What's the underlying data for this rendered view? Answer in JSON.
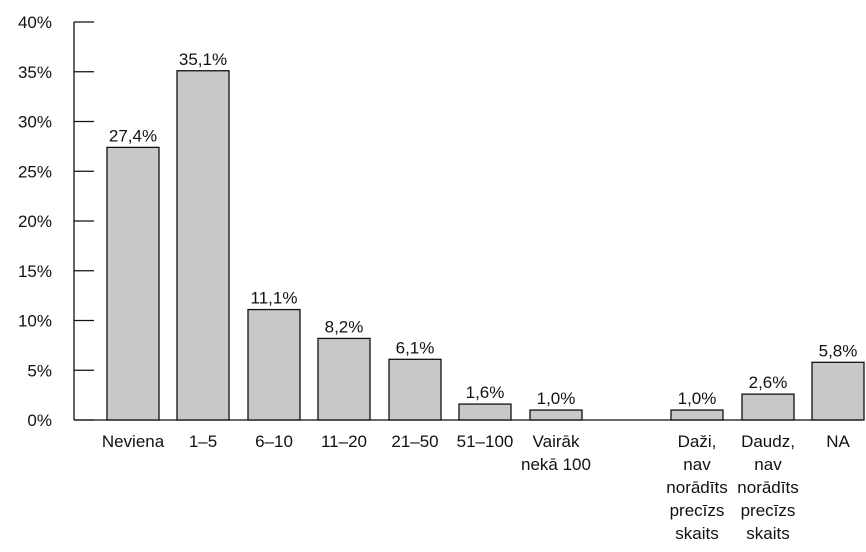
{
  "chart_data": {
    "type": "bar",
    "title": "",
    "xlabel": "",
    "ylabel": "",
    "ylim": [
      0,
      40
    ],
    "yticks": [
      "0%",
      "5%",
      "10%",
      "15%",
      "20%",
      "25%",
      "30%",
      "35%",
      "40%"
    ],
    "grid": false,
    "legend": "none",
    "bar_color": "#c8c8c8",
    "categories": [
      {
        "lines": [
          "Neviena"
        ],
        "value": 27.4,
        "label": "27,4%"
      },
      {
        "lines": [
          "1–5"
        ],
        "value": 35.1,
        "label": "35,1%"
      },
      {
        "lines": [
          "6–10"
        ],
        "value": 11.1,
        "label": "11,1%"
      },
      {
        "lines": [
          "11–20"
        ],
        "value": 8.2,
        "label": "8,2%"
      },
      {
        "lines": [
          "21–50"
        ],
        "value": 6.1,
        "label": "6,1%"
      },
      {
        "lines": [
          "51–100"
        ],
        "value": 1.6,
        "label": "1,6%"
      },
      {
        "lines": [
          "Vairāk",
          "nekā 100"
        ],
        "value": 1.0,
        "label": "1,0%"
      },
      {
        "lines": [
          "Daži,",
          "nav",
          "norādīts",
          "precīzs",
          "skaits"
        ],
        "value": 1.0,
        "label": "1,0%"
      },
      {
        "lines": [
          "Daudz,",
          "nav",
          "norādīts",
          "precīzs",
          "skaits"
        ],
        "value": 2.6,
        "label": "2,6%"
      },
      {
        "lines": [
          "NA"
        ],
        "value": 5.8,
        "label": "5,8%"
      }
    ]
  }
}
